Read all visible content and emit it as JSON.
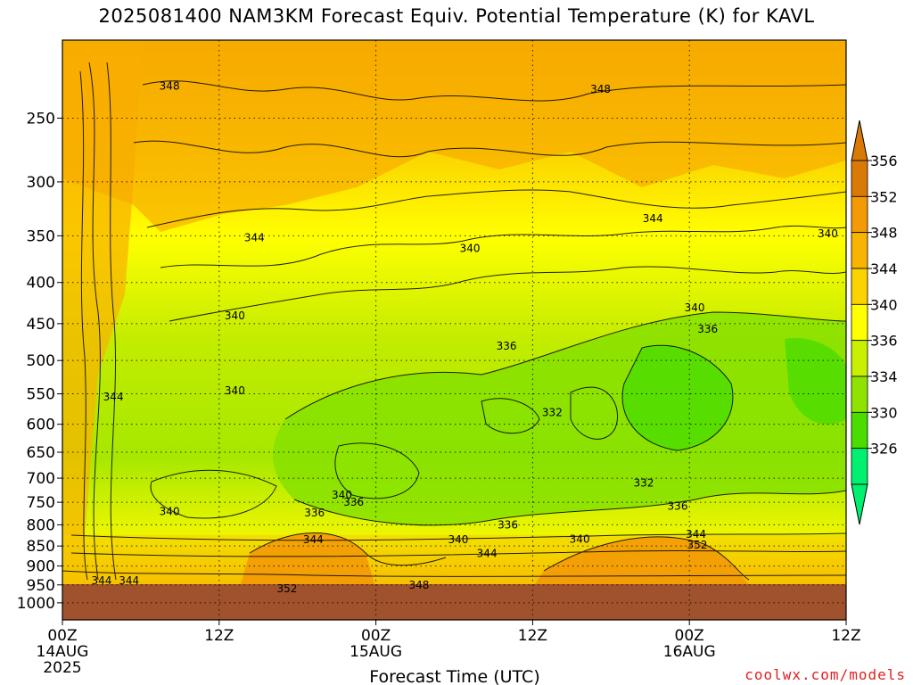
{
  "chart_data": {
    "type": "heatmap",
    "title": "2025081400 NAM3KM Forecast Equiv. Potential Temperature (K) for KAVL",
    "xlabel": "Forecast Time (UTC)",
    "ylabel": "",
    "ylim": [
      1050,
      200
    ],
    "x_ticks": [
      {
        "label": "00Z",
        "sub": "14AUG",
        "sub2": "2025",
        "hour": 0
      },
      {
        "label": "12Z",
        "sub": "",
        "sub2": "",
        "hour": 12
      },
      {
        "label": "00Z",
        "sub": "15AUG",
        "sub2": "",
        "hour": 24
      },
      {
        "label": "12Z",
        "sub": "",
        "sub2": "",
        "hour": 36
      },
      {
        "label": "00Z",
        "sub": "16AUG",
        "sub2": "",
        "hour": 48
      },
      {
        "label": "12Z",
        "sub": "",
        "sub2": "",
        "hour": 60
      }
    ],
    "xlim_hours": [
      0,
      60
    ],
    "y_ticks": [
      250,
      300,
      350,
      400,
      450,
      500,
      550,
      600,
      650,
      700,
      750,
      800,
      850,
      900,
      950,
      1000
    ],
    "colorbar": {
      "levels": [
        326,
        330,
        334,
        336,
        340,
        344,
        348,
        352,
        356
      ],
      "labels": [
        "356",
        "352",
        "348",
        "344",
        "340",
        "336",
        "334",
        "330",
        "326"
      ],
      "colors": [
        "#d97a06",
        "#f39a06",
        "#f8b400",
        "#fbd300",
        "#ffff00",
        "#c8f000",
        "#8ee400",
        "#4bdc00",
        "#00f070"
      ]
    },
    "contour_labels": [
      {
        "text": "348",
        "hour": 8.2,
        "p": 228
      },
      {
        "text": "348",
        "hour": 41.2,
        "p": 230
      },
      {
        "text": "344",
        "hour": 14.7,
        "p": 352
      },
      {
        "text": "344",
        "hour": 45.2,
        "p": 333
      },
      {
        "text": "340",
        "hour": 31.2,
        "p": 363
      },
      {
        "text": "340",
        "hour": 58.6,
        "p": 348
      },
      {
        "text": "340",
        "hour": 13.2,
        "p": 440
      },
      {
        "text": "340",
        "hour": 48.4,
        "p": 430
      },
      {
        "text": "336",
        "hour": 49.4,
        "p": 457
      },
      {
        "text": "336",
        "hour": 34.0,
        "p": 480
      },
      {
        "text": "340",
        "hour": 13.2,
        "p": 545
      },
      {
        "text": "344",
        "hour": 3.9,
        "p": 555
      },
      {
        "text": "332",
        "hour": 37.5,
        "p": 580
      },
      {
        "text": "332",
        "hour": 44.5,
        "p": 710
      },
      {
        "text": "340",
        "hour": 21.4,
        "p": 735
      },
      {
        "text": "336",
        "hour": 22.3,
        "p": 750
      },
      {
        "text": "340",
        "hour": 8.2,
        "p": 770
      },
      {
        "text": "336",
        "hour": 19.3,
        "p": 773
      },
      {
        "text": "336",
        "hour": 47.1,
        "p": 758
      },
      {
        "text": "336",
        "hour": 34.1,
        "p": 800
      },
      {
        "text": "344",
        "hour": 19.2,
        "p": 835
      },
      {
        "text": "340",
        "hour": 30.3,
        "p": 835
      },
      {
        "text": "340",
        "hour": 39.6,
        "p": 833
      },
      {
        "text": "344",
        "hour": 48.5,
        "p": 822
      },
      {
        "text": "352",
        "hour": 48.6,
        "p": 847
      },
      {
        "text": "344",
        "hour": 32.5,
        "p": 868
      },
      {
        "text": "344",
        "hour": 3.0,
        "p": 938
      },
      {
        "text": "344",
        "hour": 5.1,
        "p": 938
      },
      {
        "text": "348",
        "hour": 27.3,
        "p": 950
      },
      {
        "text": "352",
        "hour": 17.2,
        "p": 960
      }
    ]
  },
  "watermark": "coolwx.com/models"
}
